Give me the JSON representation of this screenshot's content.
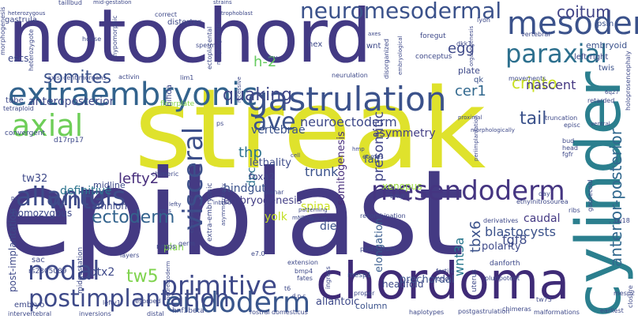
{
  "words": [
    {
      "text": "streak",
      "color": "#dfe22c"
    },
    {
      "text": "epiblast",
      "color": "#443a83"
    },
    {
      "text": "notochord",
      "color": "#433a84"
    },
    {
      "text": "cylinder",
      "color": "#2b7f8e"
    },
    {
      "text": "chordoma",
      "color": "#3f2b77"
    },
    {
      "text": "gastrulation",
      "color": "#3b528b"
    },
    {
      "text": "extraembryonic",
      "color": "#33638d"
    },
    {
      "text": "mesoderm",
      "color": "#3b528b"
    },
    {
      "text": "neuromesodermal",
      "color": "#3b528b"
    },
    {
      "text": "primitive",
      "color": "#3e4989"
    },
    {
      "text": "mesendoderm",
      "color": "#453581"
    },
    {
      "text": "endoderm",
      "color": "#39568c"
    },
    {
      "text": "allantois",
      "color": "#3e4c8a"
    },
    {
      "text": "visceral",
      "color": "#3c4f8a"
    },
    {
      "text": "axial",
      "color": "#6ece58"
    },
    {
      "text": "paraxial",
      "color": "#2d708e"
    },
    {
      "text": "wnt3",
      "color": "#3e4a89"
    },
    {
      "text": "nodal",
      "color": "#3e4989"
    },
    {
      "text": "ave",
      "color": "#3b528b"
    },
    {
      "text": "anterior-posterior",
      "color": "#31688e"
    },
    {
      "text": "postimplantation",
      "color": "#3e4a89"
    },
    {
      "text": "tw5",
      "color": "#7fd34e"
    },
    {
      "text": "ectoderm",
      "color": "#33638d"
    },
    {
      "text": "somites",
      "color": "#3b528b"
    },
    {
      "text": "quaking",
      "color": "#3f4788"
    },
    {
      "text": "tail",
      "color": "#3b528b"
    },
    {
      "text": "h-2",
      "color": "#65cb5e"
    },
    {
      "text": "lefty2",
      "color": "#472d7b"
    },
    {
      "text": "coitum",
      "color": "#414487"
    },
    {
      "text": "cripto",
      "color": "#c8e020"
    },
    {
      "text": "egg",
      "color": "#3e4989"
    },
    {
      "text": "cer1",
      "color": "#31688e"
    },
    {
      "text": "presomitic",
      "color": "#404588"
    },
    {
      "text": "tbx6",
      "color": "#3b528b"
    },
    {
      "text": "wnt3a",
      "color": "#2a788e"
    },
    {
      "text": "fgf8",
      "color": "#3e4c8a"
    },
    {
      "text": "nascent",
      "color": "#453882"
    },
    {
      "text": "thp",
      "color": "#2c718e"
    },
    {
      "text": "dpc",
      "color": "#2c728e"
    },
    {
      "text": "somitogenesis",
      "color": "#472d7b"
    },
    {
      "text": "asymmetry",
      "color": "#433e85"
    },
    {
      "text": "trunk",
      "color": "#3b528b"
    },
    {
      "text": "neuroectoderm",
      "color": "#3e4989"
    },
    {
      "text": "hindgut",
      "color": "#3b528b"
    },
    {
      "text": "embryogenesis",
      "color": "#433e85"
    },
    {
      "text": "lethality",
      "color": "#3e4c8a"
    },
    {
      "text": "definitive",
      "color": "#2b748e"
    },
    {
      "text": "anteroposterior",
      "color": "#3e4989"
    },
    {
      "text": "caudal",
      "color": "#443983"
    },
    {
      "text": "blastocysts",
      "color": "#3b528b"
    },
    {
      "text": "yolk",
      "color": "#c2df23"
    },
    {
      "text": "spina",
      "color": "#cae11f"
    },
    {
      "text": "die",
      "color": "#3b528b"
    },
    {
      "text": "polarity",
      "color": "#3e4989"
    },
    {
      "text": "fail",
      "color": "#3b528b"
    },
    {
      "text": "foxa2",
      "color": "#414487"
    },
    {
      "text": "elongation",
      "color": "#375b8d"
    },
    {
      "text": "vertebrae",
      "color": "#3b528b"
    },
    {
      "text": "amnion",
      "color": "#3e4989"
    },
    {
      "text": "xenopus",
      "color": "#9bd93c"
    },
    {
      "text": "otx2",
      "color": "#3e4989"
    },
    {
      "text": "plan",
      "color": "#85d54a"
    },
    {
      "text": "prechordal",
      "color": "#3b528b"
    },
    {
      "text": "headfold",
      "color": "#3e4989"
    },
    {
      "text": "column",
      "color": "#3b528b"
    },
    {
      "text": "allantoic",
      "color": "#3e4989"
    },
    {
      "text": "tw32",
      "color": "#3e4989"
    },
    {
      "text": "midline",
      "color": "#3e4989"
    },
    {
      "text": "homozygous",
      "color": "#3e4989"
    },
    {
      "text": "embryoid",
      "color": "#3b528b"
    },
    {
      "text": "left-right",
      "color": "#3e4989"
    },
    {
      "text": "twis",
      "color": "#3b528b"
    },
    {
      "text": "qk",
      "color": "#3b528b"
    },
    {
      "text": "tube",
      "color": "#3e4989"
    },
    {
      "text": "floorplate",
      "color": "#86d549"
    },
    {
      "text": "bifida",
      "color": "#3e4989"
    },
    {
      "text": "distorter",
      "color": "#3e4989"
    },
    {
      "text": "psm",
      "color": "#3b528b"
    },
    {
      "text": "gastrula",
      "color": "#3e4989"
    },
    {
      "text": "d17rp17",
      "color": "#3e4989"
    },
    {
      "text": "mesp1",
      "color": "#3b528b"
    },
    {
      "text": "danforth",
      "color": "#3e4989"
    },
    {
      "text": "uterus",
      "color": "#3e4989"
    },
    {
      "text": "nmps",
      "color": "#3e4989"
    },
    {
      "text": "ps",
      "color": "#3e4989"
    },
    {
      "text": "bmp",
      "color": "#3e4989"
    },
    {
      "text": "eomes",
      "color": "#3e4989"
    },
    {
      "text": "mesp2",
      "color": "#3e4989"
    },
    {
      "text": "tw73",
      "color": "#3e4989"
    },
    {
      "text": "tw18",
      "color": "#3e4989"
    },
    {
      "text": "ribs",
      "color": "#3e4989"
    },
    {
      "text": "head",
      "color": "#3e4989"
    },
    {
      "text": "fgfr",
      "color": "#3e4989"
    },
    {
      "text": "bud",
      "color": "#3e4989"
    },
    {
      "text": "episc",
      "color": "#3e4989"
    },
    {
      "text": "truncation",
      "color": "#3e4989"
    },
    {
      "text": "closure",
      "color": "#3e4989"
    },
    {
      "text": "earliest",
      "color": "#3e4989"
    },
    {
      "text": "chimeras",
      "color": "#3e4989"
    },
    {
      "text": "pluripotent",
      "color": "#3e4989"
    },
    {
      "text": "haplotypes",
      "color": "#3e4989"
    },
    {
      "text": "postgastrulation",
      "color": "#3e4989"
    },
    {
      "text": "malformations",
      "color": "#3e4989"
    },
    {
      "text": "postcoitum",
      "color": "#3e4989"
    },
    {
      "text": "recombination",
      "color": "#3e4989"
    },
    {
      "text": "fertile",
      "color": "#3e4989"
    },
    {
      "text": "node",
      "color": "#3e4989"
    },
    {
      "text": "bmp4",
      "color": "#3e4989"
    },
    {
      "text": "extension",
      "color": "#3e4989"
    },
    {
      "text": "fates",
      "color": "#3e4989"
    },
    {
      "text": "e7.0",
      "color": "#3e4989"
    },
    {
      "text": "germ",
      "color": "#3e4989"
    },
    {
      "text": "layers",
      "color": "#3e4989"
    },
    {
      "text": "post-implantation",
      "color": "#3e4989"
    },
    {
      "text": "sac",
      "color": "#3e4989"
    },
    {
      "text": "rs2305089",
      "color": "#3e4989"
    },
    {
      "text": "embryo",
      "color": "#3e4989"
    },
    {
      "text": "midgestation",
      "color": "#3e4989"
    },
    {
      "text": "resorbed",
      "color": "#3e4989"
    },
    {
      "text": "hnf3beta",
      "color": "#3e4989"
    },
    {
      "text": "lefty1",
      "color": "#3e4989"
    },
    {
      "text": "intervertebral",
      "color": "#3e4989"
    },
    {
      "text": "inversions",
      "color": "#3e4989"
    },
    {
      "text": "distal",
      "color": "#3e4989"
    },
    {
      "text": "rostral",
      "color": "#3e4989"
    },
    {
      "text": "domesticus",
      "color": "#3e4989"
    },
    {
      "text": "extra-embryonic",
      "color": "#3e4989"
    },
    {
      "text": "lefty",
      "color": "#3e4989"
    },
    {
      "text": "crossing-over",
      "color": "#3e4989"
    },
    {
      "text": "inbred",
      "color": "#3e4989"
    },
    {
      "text": "mus",
      "color": "#3e4989"
    },
    {
      "text": "chimeric",
      "color": "#3e4989"
    },
    {
      "text": "planar",
      "color": "#3e4989"
    },
    {
      "text": "pcp",
      "color": "#3e4989"
    },
    {
      "text": "tetraploid",
      "color": "#3e4989"
    },
    {
      "text": "convergent",
      "color": "#3e4989"
    },
    {
      "text": "escs",
      "color": "#3e4989"
    },
    {
      "text": "axis",
      "color": "#3e4989"
    },
    {
      "text": "centimorgans",
      "color": "#3e4989"
    },
    {
      "text": "activin",
      "color": "#3e4989"
    },
    {
      "text": "lim1",
      "color": "#3e4989"
    },
    {
      "text": "ectoplacental",
      "color": "#3e4989"
    },
    {
      "text": "morphogenesis",
      "color": "#3e4989"
    },
    {
      "text": "heterozygote",
      "color": "#3e4989"
    },
    {
      "text": "heterozygous",
      "color": "#3e4989"
    },
    {
      "text": "taillbud",
      "color": "#3e4989"
    },
    {
      "text": "mid-gestation",
      "color": "#3e4989"
    },
    {
      "text": "correct",
      "color": "#3e4989"
    },
    {
      "text": "strains",
      "color": "#3e4989"
    },
    {
      "text": "trophoblast",
      "color": "#3e4989"
    },
    {
      "text": "hypomorphic",
      "color": "#3e4989"
    },
    {
      "text": "house",
      "color": "#3e4989"
    },
    {
      "text": "sperm",
      "color": "#3e4989"
    },
    {
      "text": "morphogenetic",
      "color": "#3e4989"
    },
    {
      "text": "hex",
      "color": "#3e4989"
    },
    {
      "text": "wnt",
      "color": "#3e4989"
    },
    {
      "text": "enu",
      "color": "#3e4989"
    },
    {
      "text": "conceptus",
      "color": "#3e4989"
    },
    {
      "text": "foregut",
      "color": "#3e4989"
    },
    {
      "text": "dkk1",
      "color": "#3e4989"
    },
    {
      "text": "vertebral",
      "color": "#3e4989"
    },
    {
      "text": "lyon",
      "color": "#3e4989"
    },
    {
      "text": "embryological",
      "color": "#3e4989"
    },
    {
      "text": "disorganized",
      "color": "#3e4989"
    },
    {
      "text": "neurulation",
      "color": "#3e4989"
    },
    {
      "text": "plate",
      "color": "#3e4989"
    },
    {
      "text": "movements",
      "color": "#3e4989"
    },
    {
      "text": "retarded",
      "color": "#3e4989"
    },
    {
      "text": "holoprosencephaly",
      "color": "#3e4989"
    },
    {
      "text": "6q27",
      "color": "#3e4989"
    },
    {
      "text": "ethylnitrosourea",
      "color": "#3e4989"
    },
    {
      "text": "derivatives",
      "color": "#3e4989"
    },
    {
      "text": "recessive",
      "color": "#3e4989"
    },
    {
      "text": "ingress",
      "color": "#3e4989"
    },
    {
      "text": "proper",
      "color": "#3e4989"
    },
    {
      "text": "goosecoid",
      "color": "#3e4989"
    },
    {
      "text": "patterning",
      "color": "#3e4989"
    },
    {
      "text": "periimplantation",
      "color": "#3e4989"
    },
    {
      "text": "asymmetrically",
      "color": "#3e4989"
    },
    {
      "text": "mNFlag",
      "color": "#3e4989"
    },
    {
      "text": "t6",
      "color": "#3e4989"
    },
    {
      "text": "d.p.c",
      "color": "#3e4989"
    },
    {
      "text": "neurectoderm",
      "color": "#3e4989"
    },
    {
      "text": "day",
      "color": "#3e4989"
    },
    {
      "text": "failure",
      "color": "#3e4989"
    },
    {
      "text": "cell",
      "color": "#3e4989"
    },
    {
      "text": "ventral",
      "color": "#3e4989"
    },
    {
      "text": "proximal",
      "color": "#3e4989"
    },
    {
      "text": "morphologically",
      "color": "#3e4989"
    },
    {
      "text": "organogenesis",
      "color": "#3e4989"
    },
    {
      "text": "axes",
      "color": "#3e4989"
    },
    {
      "text": "hmp",
      "color": "#3e4989"
    }
  ]
}
